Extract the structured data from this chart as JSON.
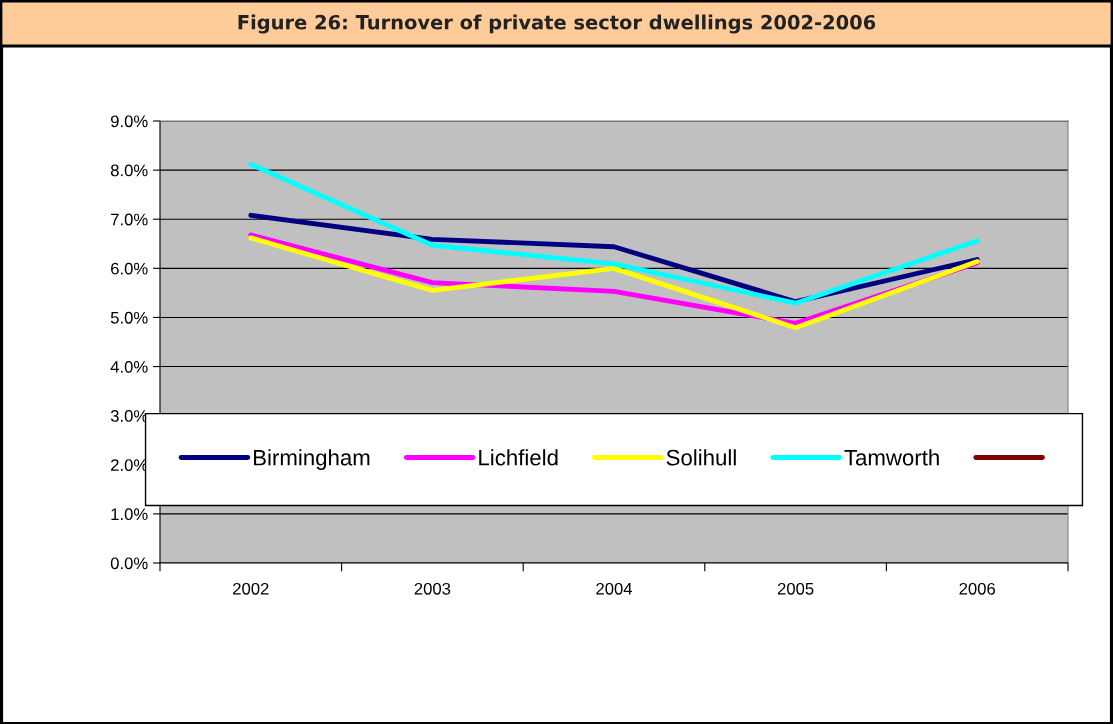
{
  "chart_data": {
    "type": "line",
    "title": "Figure 26: Turnover of private sector dwellings 2002-2006",
    "categories": [
      "2002",
      "2003",
      "2004",
      "2005",
      "2006"
    ],
    "series": [
      {
        "name": "Birmingham",
        "color": "#000080",
        "values": [
          7.08,
          6.59,
          6.44,
          5.32,
          6.18
        ]
      },
      {
        "name": "Lichfield",
        "color": "#ff00ff",
        "values": [
          6.68,
          5.71,
          5.53,
          4.88,
          6.11
        ]
      },
      {
        "name": "Solihull",
        "color": "#ffff00",
        "values": [
          6.62,
          5.55,
          6.0,
          4.79,
          6.14
        ]
      },
      {
        "name": "Tamworth",
        "color": "#00ffff",
        "values": [
          8.12,
          6.47,
          6.09,
          5.29,
          6.56
        ]
      },
      {
        "color": "#800000",
        "values": [
          null,
          null,
          null,
          null,
          null
        ]
      }
    ],
    "ylim": [
      0,
      9
    ],
    "yticks": [
      {
        "value": 0,
        "label": "0.0%"
      },
      {
        "value": 1,
        "label": "1.0%"
      },
      {
        "value": 2,
        "label": "2.0%"
      },
      {
        "value": 3,
        "label": "3.0%"
      },
      {
        "value": 4,
        "label": "4.0%"
      },
      {
        "value": 5,
        "label": "5.0%"
      },
      {
        "value": 6,
        "label": "6.0%"
      },
      {
        "value": 7,
        "label": "7.0%"
      },
      {
        "value": 8,
        "label": "8.0%"
      },
      {
        "value": 9,
        "label": "9.0%"
      }
    ],
    "grid": "y",
    "legend": "bottom",
    "marker": "none",
    "line_style": "solid"
  }
}
